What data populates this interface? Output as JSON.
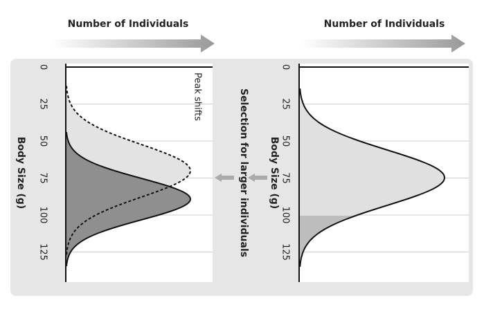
{
  "left_panel": {
    "header": "Number of Individuals",
    "axis_label": "Body Size (g)",
    "ticks": [
      0,
      25,
      50,
      75,
      100,
      125
    ],
    "annotation": "Peak shifts"
  },
  "right_panel": {
    "header": "Number of Individuals",
    "axis_label": "Body Size (g)",
    "ticks": [
      0,
      25,
      50,
      75,
      100,
      125
    ]
  },
  "middle_label": "Selection for larger individuals"
}
